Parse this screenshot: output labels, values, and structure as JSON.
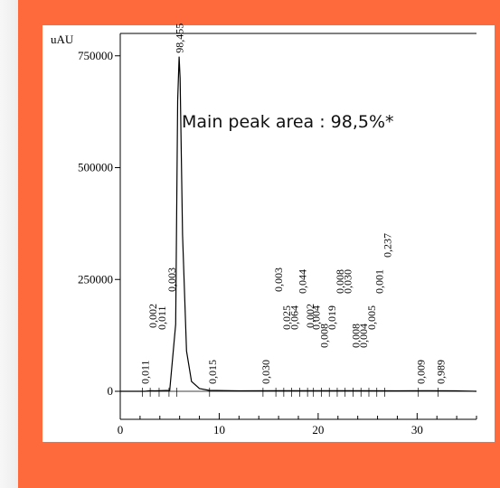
{
  "colors": {
    "frame": "#ff6a3d",
    "panel": "#ffffff",
    "trace": "#000000"
  },
  "chart_data": {
    "type": "line",
    "title": "",
    "ylabel": "uAU",
    "xlabel": "",
    "xlim": [
      0,
      36
    ],
    "ylim": [
      0,
      800000
    ],
    "x_ticks": [
      0,
      10,
      20,
      30
    ],
    "y_ticks": [
      0,
      250000,
      500000,
      750000
    ],
    "x_tick_labels": [
      "0",
      "10",
      "20",
      "30"
    ],
    "y_tick_labels": [
      "0",
      "250000",
      "500000",
      "750000"
    ],
    "grid": false,
    "legend": "none",
    "annotation": "Main peak area : 98,5%*",
    "series": [
      {
        "x": [
          0,
          2.5,
          3.0,
          3.5,
          5.0,
          5.6,
          5.8,
          5.95,
          6.05,
          6.3,
          6.7,
          7.2,
          8.0,
          9.0,
          12.0,
          16.0,
          20.0,
          24.0,
          28.0,
          31.0,
          34.0,
          36.0
        ],
        "values": [
          0,
          0,
          1500,
          1000,
          2000,
          150000,
          650000,
          748000,
          700000,
          350000,
          90000,
          22000,
          6000,
          2000,
          1000,
          1200,
          1500,
          1200,
          1000,
          1500,
          1000,
          0
        ]
      }
    ],
    "peaks": [
      {
        "x": 2.5,
        "label": "0,011"
      },
      {
        "x": 3.3,
        "label": "0,002"
      },
      {
        "x": 4.2,
        "label": "0,011"
      },
      {
        "x": 5.2,
        "label": "0,003"
      },
      {
        "x": 6.0,
        "label": "98,455"
      },
      {
        "x": 9.3,
        "label": "0,015"
      },
      {
        "x": 14.7,
        "label": "0,030"
      },
      {
        "x": 16.0,
        "label": "0,003"
      },
      {
        "x": 16.8,
        "label": "0,025"
      },
      {
        "x": 17.6,
        "label": "0,064"
      },
      {
        "x": 18.4,
        "label": "0,044"
      },
      {
        "x": 19.2,
        "label": "0,002"
      },
      {
        "x": 19.8,
        "label": "0,004"
      },
      {
        "x": 20.6,
        "label": "0,008"
      },
      {
        "x": 21.4,
        "label": "0,019"
      },
      {
        "x": 22.2,
        "label": "0,008"
      },
      {
        "x": 23.0,
        "label": "0,030"
      },
      {
        "x": 23.8,
        "label": "0,008"
      },
      {
        "x": 24.6,
        "label": "0,004"
      },
      {
        "x": 25.4,
        "label": "0,005"
      },
      {
        "x": 26.2,
        "label": "0,001"
      },
      {
        "x": 27.0,
        "label": "0,237"
      },
      {
        "x": 30.4,
        "label": "0,009"
      },
      {
        "x": 32.4,
        "label": "0,989"
      }
    ]
  }
}
